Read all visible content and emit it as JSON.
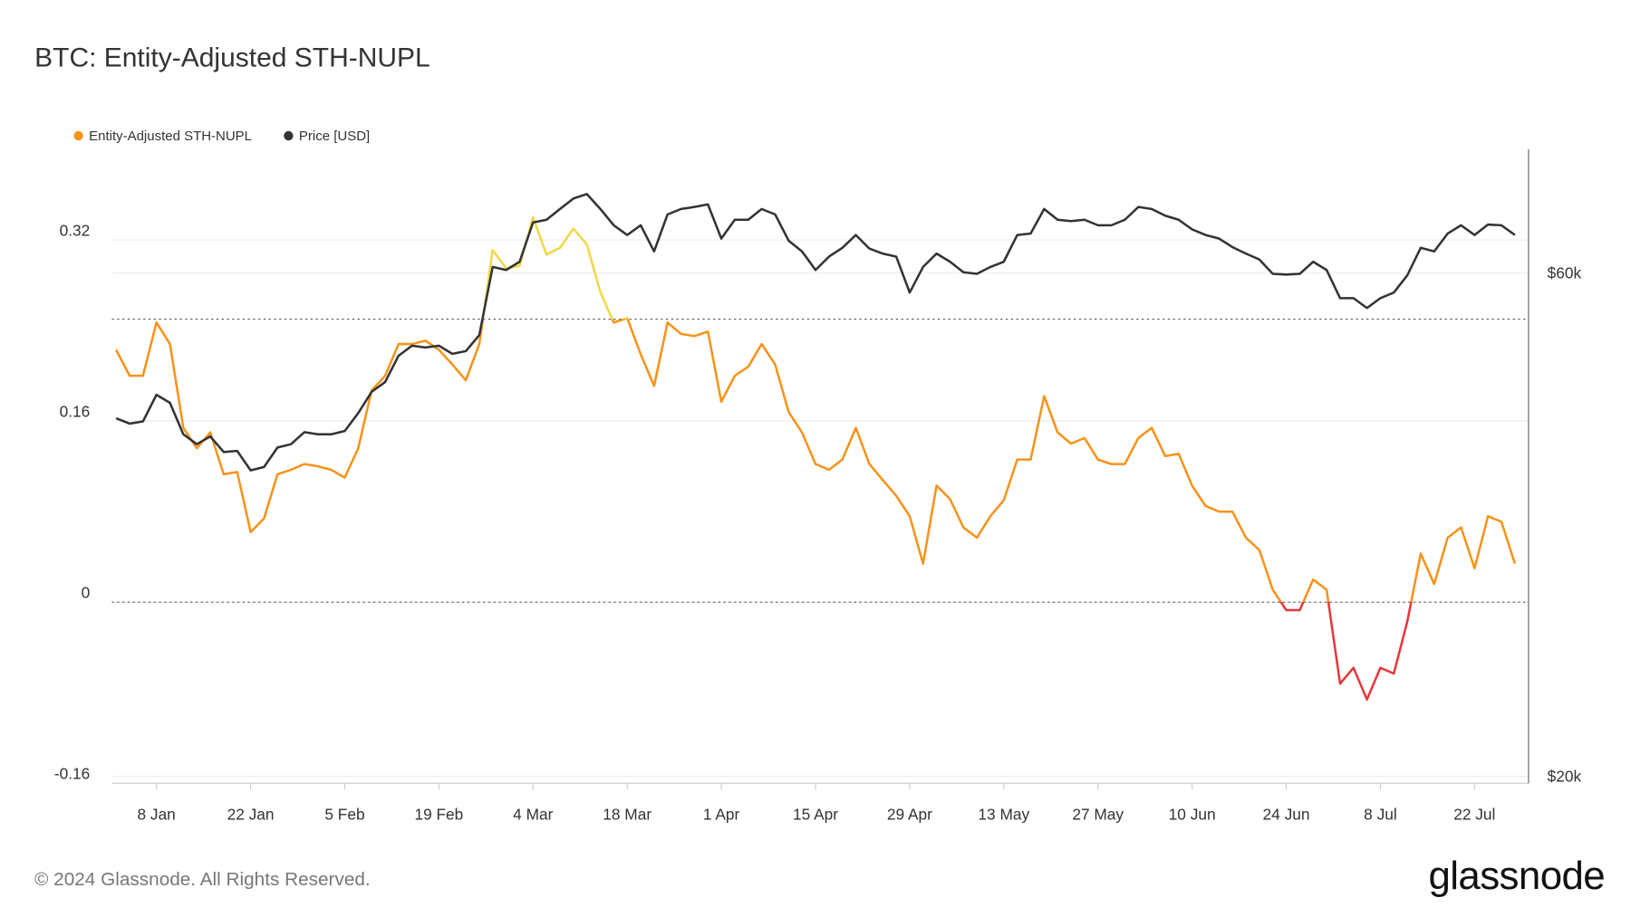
{
  "chart_data": {
    "type": "line",
    "title": "BTC: Entity-Adjusted STH-NUPL",
    "categories": [
      null,
      null,
      null,
      "8 Jan",
      null,
      null,
      null,
      null,
      null,
      null,
      "22 Jan",
      null,
      null,
      null,
      null,
      null,
      null,
      "5 Feb",
      null,
      null,
      null,
      null,
      null,
      null,
      "19 Feb",
      null,
      null,
      null,
      null,
      null,
      null,
      "4 Mar",
      null,
      null,
      null,
      null,
      null,
      null,
      "18 Mar",
      null,
      null,
      null,
      null,
      null,
      null,
      "1 Apr",
      null,
      null,
      null,
      null,
      null,
      null,
      "15 Apr",
      null,
      null,
      null,
      null,
      null,
      null,
      "29 Apr",
      null,
      null,
      null,
      null,
      null,
      null,
      "13 May",
      null,
      null,
      null,
      null,
      null,
      null,
      "27 May",
      null,
      null,
      null,
      null,
      null,
      null,
      "10 Jun",
      null,
      null,
      null,
      null,
      null,
      null,
      "24 Jun",
      null,
      null,
      null,
      null,
      null,
      null,
      "8 Jul",
      null,
      null,
      null,
      null,
      null,
      null,
      "22 Jul",
      null,
      null,
      null
    ],
    "series": [
      {
        "name": "Entity-Adjusted STH-NUPL",
        "color": "#f7931a",
        "band_colors": [
          "#e5383b",
          "#f7931a",
          "#f0d848"
        ],
        "values": [
          0.223,
          0.2,
          0.2,
          0.247,
          0.228,
          0.154,
          0.136,
          0.15,
          0.113,
          0.115,
          0.062,
          0.074,
          0.113,
          0.117,
          0.122,
          0.12,
          0.117,
          0.11,
          0.136,
          0.187,
          0.2,
          0.228,
          0.228,
          0.231,
          0.223,
          0.21,
          0.196,
          0.228,
          0.311,
          0.295,
          0.297,
          0.34,
          0.307,
          0.313,
          0.33,
          0.316,
          0.274,
          0.247,
          0.251,
          0.219,
          0.191,
          0.247,
          0.237,
          0.235,
          0.239,
          0.177,
          0.2,
          0.208,
          0.228,
          0.21,
          0.168,
          0.15,
          0.122,
          0.117,
          0.126,
          0.154,
          0.122,
          0.108,
          0.094,
          0.076,
          0.034,
          0.103,
          0.091,
          0.066,
          0.057,
          0.076,
          0.09,
          0.126,
          0.126,
          0.182,
          0.15,
          0.14,
          0.145,
          0.126,
          0.122,
          0.122,
          0.145,
          0.154,
          0.129,
          0.131,
          0.103,
          0.085,
          0.08,
          0.08,
          0.057,
          0.046,
          0.011,
          -0.007,
          -0.007,
          0.02,
          0.011,
          -0.072,
          -0.058,
          -0.086,
          -0.058,
          -0.063,
          -0.017,
          0.043,
          0.016,
          0.057,
          0.066,
          0.03,
          0.076,
          0.071,
          0.034
        ]
      },
      {
        "name": "Price [USD]",
        "color": "#333333",
        "axis": "y2",
        "values": [
          43700,
          43200,
          43400,
          46000,
          45200,
          42200,
          41300,
          42000,
          40600,
          40700,
          39000,
          39300,
          41000,
          41300,
          42400,
          42200,
          42200,
          42500,
          44200,
          46300,
          47300,
          50100,
          51200,
          51000,
          51200,
          50300,
          50600,
          52400,
          60800,
          60400,
          61500,
          67000,
          67400,
          69000,
          70600,
          71300,
          69000,
          66600,
          65200,
          66600,
          62900,
          68200,
          69000,
          69300,
          69700,
          64700,
          67400,
          67400,
          69000,
          68200,
          64400,
          62900,
          60400,
          62200,
          63400,
          65200,
          63300,
          62600,
          62200,
          57500,
          60800,
          62600,
          61500,
          60100,
          59900,
          60800,
          61500,
          65200,
          65400,
          69000,
          67400,
          67200,
          67400,
          66600,
          66600,
          67400,
          69300,
          69000,
          68000,
          67400,
          66000,
          65200,
          64700,
          63500,
          62600,
          61800,
          59900,
          59800,
          59900,
          61500,
          60400,
          56800,
          56800,
          55600,
          56800,
          57500,
          59700,
          63400,
          62900,
          65400,
          66600,
          65200,
          66700,
          66600,
          65200
        ]
      }
    ],
    "ylim": [
      -0.16,
      0.4
    ],
    "yticks": [
      0.32,
      0.16,
      0,
      -0.16
    ],
    "y2lim": [
      19700,
      78600
    ],
    "y2scale": "log",
    "y2ticks": [
      {
        "value": 60000,
        "label": "$60k"
      },
      {
        "value": 20000,
        "label": "$20k"
      }
    ],
    "color_thresholds": [
      0,
      0.25
    ],
    "grid": true,
    "legend": "top-left"
  },
  "footer": "© 2024 Glassnode. All Rights Reserved.",
  "brand": "glassnode"
}
